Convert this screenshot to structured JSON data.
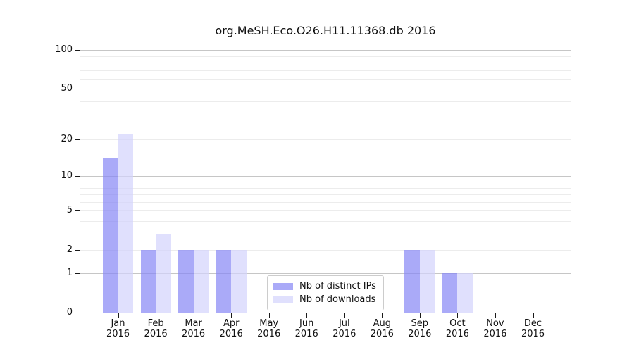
{
  "title": "org.MeSH.Eco.O26.H11.11368.db 2016",
  "chart_data": {
    "type": "bar",
    "title": "org.MeSH.Eco.O26.H11.11368.db 2016",
    "categories": [
      "Jan",
      "Feb",
      "Mar",
      "Apr",
      "May",
      "Jun",
      "Jul",
      "Aug",
      "Sep",
      "Oct",
      "Nov",
      "Dec"
    ],
    "year_label": "2016",
    "series": [
      {
        "name": "Nb of distinct IPs",
        "color": "rgba(134,134,245,0.7)",
        "values": [
          14,
          2,
          2,
          2,
          0,
          0,
          0,
          0,
          2,
          1,
          0,
          0
        ]
      },
      {
        "name": "Nb of downloads",
        "color": "rgba(211,211,252,0.7)",
        "values": [
          22,
          3,
          2,
          2,
          0,
          0,
          0,
          0,
          2,
          1,
          0,
          0
        ]
      }
    ],
    "yscale": "log10(1+x)",
    "ylim": [
      0,
      115
    ],
    "yticks": [
      0,
      1,
      2,
      5,
      10,
      20,
      50,
      100
    ],
    "grid_major_values": [
      1,
      10,
      100
    ],
    "grid_minor_values": [
      2,
      3,
      4,
      5,
      6,
      7,
      8,
      9,
      20,
      30,
      40,
      50,
      60,
      70,
      80,
      90
    ],
    "grid_major_color": "#c6c6c6",
    "grid_minor_color": "#ececec",
    "legend_position": "bottom-center",
    "legend_labels": [
      "Nb of distinct IPs",
      "Nb of downloads"
    ],
    "xlabel": "",
    "ylabel": ""
  }
}
